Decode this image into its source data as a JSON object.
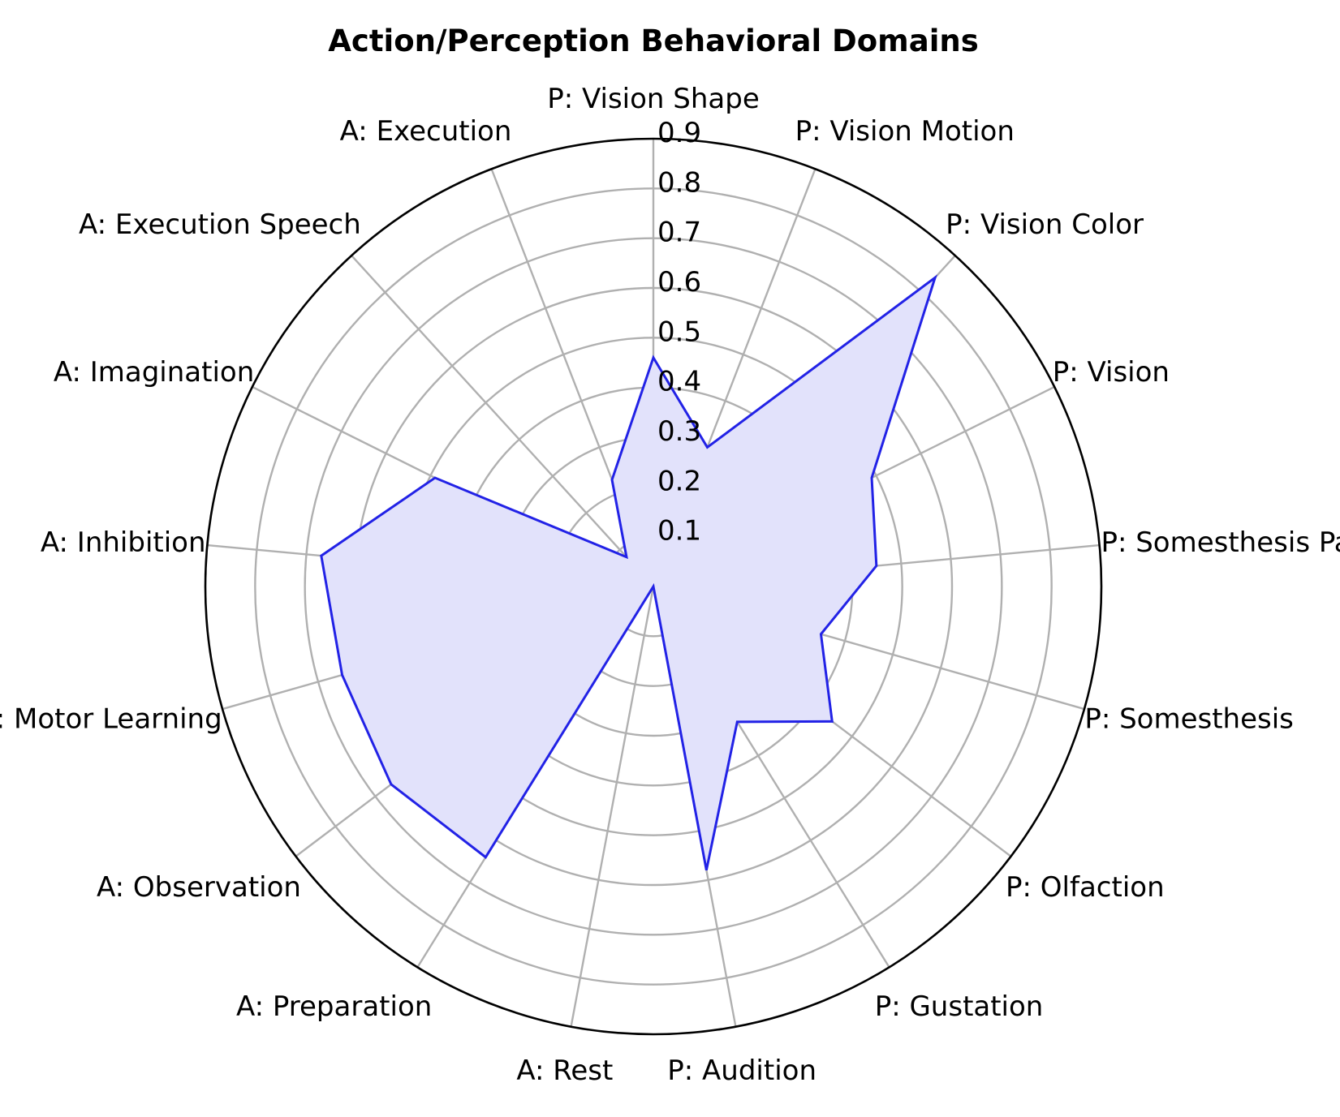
{
  "chart_data": {
    "type": "radar",
    "title": "Action/Perception Behavioral Domains",
    "categories": [
      "P: Vision Shape",
      "P: Vision Motion",
      "P: Vision Color",
      "P: Vision",
      "P: Somesthesis Pain",
      "P: Somesthesis",
      "P: Olfaction",
      "P: Gustation",
      "P: Audition",
      "A: Rest",
      "A: Preparation",
      "A: Observation",
      "A: Motor Learning",
      "A: Inhibition",
      "A: Imagination",
      "A: Execution Speech",
      "A: Execution"
    ],
    "series": [
      {
        "values": [
          0.46,
          0.3,
          0.84,
          0.49,
          0.45,
          0.35,
          0.45,
          0.32,
          0.58,
          0.0,
          0.64,
          0.66,
          0.65,
          0.67,
          0.49,
          0.08,
          0.23
        ]
      }
    ],
    "rlim": [
      0,
      0.9
    ],
    "rticks": [
      0.1,
      0.2,
      0.3,
      0.4,
      0.5,
      0.6,
      0.7,
      0.8,
      0.9
    ],
    "grid": true,
    "colors": {
      "line": "#2222e6",
      "fill": "#e2e2fb",
      "grid": "#b0b0b0",
      "frame": "#000000"
    }
  }
}
